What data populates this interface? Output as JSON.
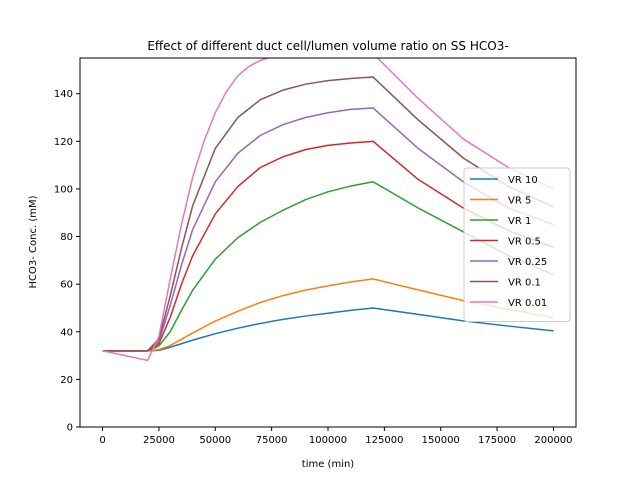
{
  "chart_data": {
    "type": "line",
    "title": "Effect of different duct cell/lumen volume ratio on SS HCO3-",
    "xlabel": "time (min)",
    "ylabel": "HCO3- Conc. (mM)",
    "xlim": [
      -10000,
      210000
    ],
    "ylim": [
      0,
      155
    ],
    "xticks": [
      0,
      25000,
      50000,
      75000,
      100000,
      125000,
      150000,
      175000,
      200000
    ],
    "yticks": [
      0,
      20,
      40,
      60,
      80,
      100,
      120,
      140
    ],
    "legend_position": "center right",
    "grid": false,
    "series": [
      {
        "name": "VR 10",
        "color": "#1f77b4",
        "x": [
          0,
          20000,
          25000,
          30000,
          40000,
          50000,
          60000,
          70000,
          80000,
          90000,
          100000,
          110000,
          120000,
          140000,
          160000,
          180000,
          200000
        ],
        "y": [
          32,
          32,
          32.2,
          33.5,
          36.5,
          39.2,
          41.5,
          43.5,
          45.2,
          46.6,
          47.8,
          49,
          50,
          47.3,
          44.6,
          42.4,
          40.4
        ]
      },
      {
        "name": "VR 5",
        "color": "#ff7f0e",
        "x": [
          0,
          20000,
          25000,
          30000,
          40000,
          50000,
          60000,
          70000,
          80000,
          90000,
          100000,
          110000,
          120000,
          140000,
          160000,
          180000,
          200000
        ],
        "y": [
          32,
          32,
          32.5,
          34.2,
          39.5,
          44.5,
          48.6,
          52.3,
          55.2,
          57.5,
          59.3,
          60.9,
          62.2,
          57.6,
          53.1,
          49.4,
          46
        ]
      },
      {
        "name": "VR 1",
        "color": "#2ca02c",
        "x": [
          0,
          20000,
          25000,
          30000,
          35000,
          40000,
          50000,
          60000,
          70000,
          80000,
          90000,
          100000,
          110000,
          120000,
          140000,
          160000,
          180000,
          200000
        ],
        "y": [
          32,
          32,
          34,
          40,
          49,
          57.5,
          70.5,
          79.5,
          86,
          91,
          95.5,
          98.8,
          101.2,
          103,
          92,
          82,
          72,
          64
        ]
      },
      {
        "name": "VR 0.5",
        "color": "#d62728",
        "x": [
          0,
          20000,
          25000,
          30000,
          35000,
          40000,
          50000,
          60000,
          70000,
          80000,
          90000,
          100000,
          110000,
          120000,
          140000,
          160000,
          180000,
          200000
        ],
        "y": [
          32,
          32,
          35,
          46,
          60,
          72,
          89.5,
          101,
          109,
          113.5,
          116.5,
          118.3,
          119.3,
          120,
          104,
          92,
          82.5,
          75.5
        ]
      },
      {
        "name": "VR 0.25",
        "color": "#9467bd",
        "x": [
          0,
          20000,
          25000,
          30000,
          35000,
          40000,
          50000,
          60000,
          70000,
          80000,
          90000,
          100000,
          110000,
          120000,
          140000,
          160000,
          180000,
          200000
        ],
        "y": [
          32,
          32,
          36,
          51,
          68,
          83,
          103,
          115,
          122.5,
          127,
          130,
          132,
          133.4,
          134,
          117,
          103,
          92,
          85
        ]
      },
      {
        "name": "VR 0.1",
        "color": "#8c564b",
        "x": [
          0,
          20000,
          25000,
          30000,
          35000,
          40000,
          50000,
          60000,
          70000,
          80000,
          90000,
          100000,
          110000,
          120000,
          140000,
          160000,
          180000,
          200000
        ],
        "y": [
          32,
          32,
          37,
          55,
          75,
          93,
          117,
          130,
          137.5,
          141.5,
          144,
          145.5,
          146.4,
          147,
          129,
          113,
          101,
          92.5
        ]
      },
      {
        "name": "VR 0.01",
        "color": "#e377c2",
        "x": [
          0,
          20000,
          25000,
          30000,
          35000,
          40000,
          45000,
          50000,
          55000,
          60000,
          65000,
          70000,
          75000,
          80000,
          90000,
          100000,
          110000,
          120000,
          122000,
          140000,
          160000,
          180000,
          200000
        ],
        "y": [
          32,
          28,
          38,
          62,
          85,
          105,
          120,
          132,
          141,
          147.5,
          151.5,
          154,
          155.5,
          156.5,
          157.5,
          158,
          158.3,
          158.5,
          155,
          138,
          121,
          109,
          100
        ]
      }
    ]
  }
}
